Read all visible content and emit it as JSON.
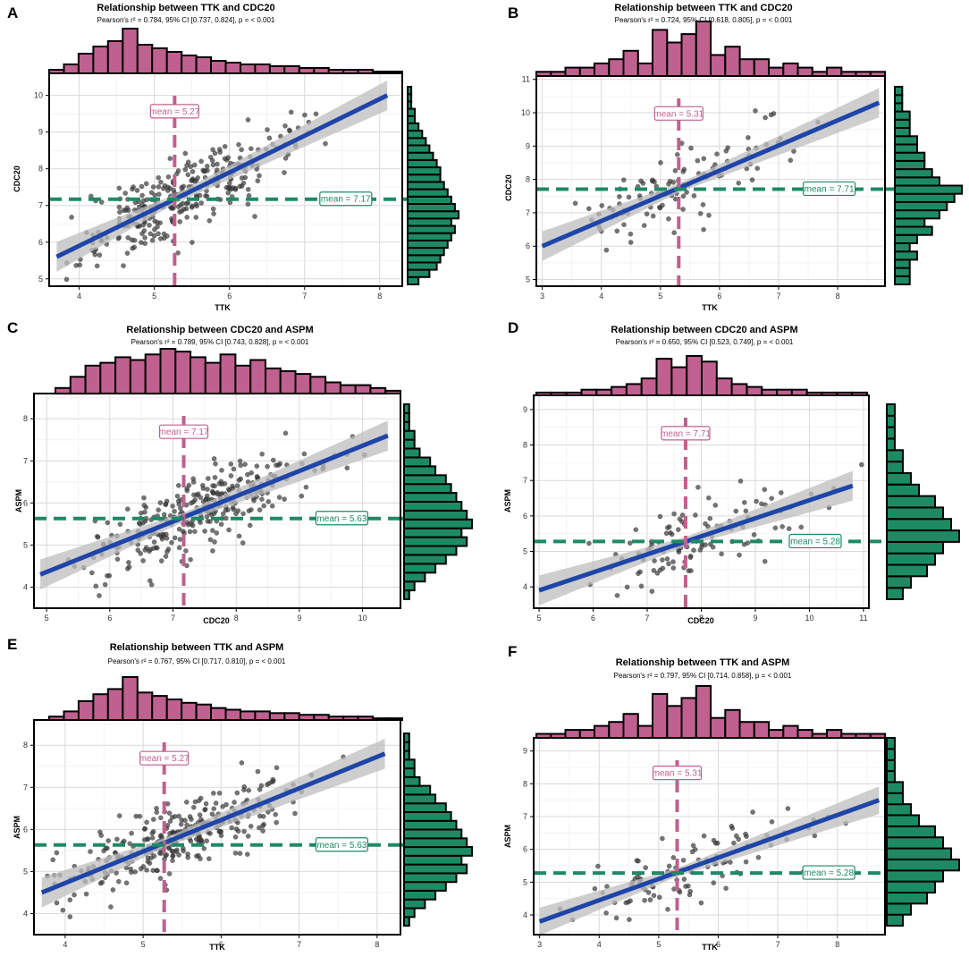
{
  "colors": {
    "hist_x": "#c0608f",
    "hist_y": "#1e8a64",
    "regression": "#1f45a8",
    "ci_band": "#bdbdbd",
    "points": "#3a3a3a",
    "mean_x": "#c0608f",
    "mean_y": "#1e8a64"
  },
  "chart_data": [
    {
      "panel": "A",
      "type": "scatter",
      "title": "Relationship between TTK and CDC20",
      "subtitle": "Pearson's r² = 0.784, 95% CI [0.737, 0.824], p = < 0.001",
      "xlabel": "TTK",
      "ylabel": "CDC20",
      "xlim": [
        3.6,
        8.3
      ],
      "ylim": [
        4.8,
        10.6
      ],
      "xticks": [
        "4",
        "5",
        "6",
        "7",
        "8"
      ],
      "yticks": [
        "5",
        "6",
        "7",
        "8",
        "9",
        "10"
      ],
      "mean_x": 5.27,
      "mean_y": 7.17,
      "mean_x_label": "mean = 5.27",
      "mean_y_label": "mean = 7.17",
      "fit": {
        "x0": 3.7,
        "y0": 5.6,
        "x1": 8.1,
        "y1": 10.0
      },
      "n_points": 300,
      "hist_x": [
        2,
        5,
        11,
        15,
        18,
        25,
        16,
        14,
        12,
        10,
        9,
        7,
        6,
        5,
        5,
        4,
        4,
        3,
        3,
        2,
        2,
        2,
        1,
        1
      ],
      "hist_y": [
        3,
        6,
        8,
        9,
        10,
        11,
        12,
        13,
        12,
        14,
        13,
        12,
        11,
        10,
        9,
        9,
        8,
        7,
        6,
        5,
        4,
        3,
        2,
        2,
        1,
        1,
        1
      ]
    },
    {
      "panel": "B",
      "type": "scatter",
      "title": "Relationship between TTK and CDC20",
      "subtitle": "Pearson's r² = 0.724, 95% CI [0.618, 0.805], p = < 0.001",
      "xlabel": "TTK",
      "ylabel": "CDC20",
      "xlim": [
        2.9,
        8.8
      ],
      "ylim": [
        4.8,
        11.1
      ],
      "xticks": [
        "3",
        "4",
        "5",
        "6",
        "7",
        "8"
      ],
      "yticks": [
        "5",
        "6",
        "7",
        "8",
        "9",
        "10",
        "11"
      ],
      "mean_x": 5.31,
      "mean_y": 7.71,
      "mean_x_label": "mean = 5.31",
      "mean_y_label": "mean = 7.71",
      "fit": {
        "x0": 3.0,
        "y0": 6.0,
        "x1": 8.7,
        "y1": 10.3
      },
      "n_points": 110,
      "hist_x": [
        1,
        1,
        2,
        2,
        3,
        4,
        6,
        3,
        11,
        8,
        10,
        13,
        5,
        7,
        4,
        4,
        2,
        3,
        2,
        1,
        2,
        1,
        1,
        1
      ],
      "hist_y": [
        2,
        2,
        2,
        3,
        2,
        3,
        5,
        4,
        6,
        7,
        8,
        9,
        6,
        5,
        4,
        4,
        3,
        3,
        2,
        2,
        2,
        1,
        1,
        1
      ]
    },
    {
      "panel": "C",
      "type": "scatter",
      "title": "Relationship between CDC20 and ASPM",
      "subtitle": "Pearson's r² = 0.789, 95% CI [0.743, 0.828], p = < 0.001",
      "xlabel": "CDC20",
      "ylabel": "ASPM",
      "xlim": [
        4.8,
        10.6
      ],
      "ylim": [
        3.5,
        8.6
      ],
      "xticks": [
        "5",
        "6",
        "7",
        "8",
        "9",
        "10"
      ],
      "yticks": [
        "4",
        "5",
        "6",
        "7",
        "8"
      ],
      "mean_x": 7.17,
      "mean_y": 5.63,
      "mean_x_label": "mean = 7.17",
      "mean_y_label": "mean = 5.63",
      "fit": {
        "x0": 4.9,
        "y0": 4.3,
        "x1": 10.4,
        "y1": 7.6
      },
      "n_points": 300,
      "hist_x": [
        2,
        6,
        10,
        11,
        13,
        12,
        14,
        16,
        15,
        13,
        11,
        14,
        10,
        12,
        9,
        8,
        7,
        6,
        4,
        3,
        3,
        2,
        1
      ],
      "hist_y": [
        1,
        2,
        4,
        6,
        8,
        10,
        12,
        11,
        13,
        12,
        11,
        10,
        9,
        8,
        6,
        5,
        3,
        2,
        2,
        1,
        1,
        1
      ]
    },
    {
      "panel": "D",
      "type": "scatter",
      "title": "Relationship between CDC20 and ASPM",
      "subtitle": "Pearson's r² = 0.650, 95% CI [0.523, 0.749], p = < 0.001",
      "xlabel": "CDC20",
      "ylabel": "ASPM",
      "xlim": [
        4.9,
        11.1
      ],
      "ylim": [
        3.4,
        9.4
      ],
      "xticks": [
        "5",
        "6",
        "7",
        "8",
        "9",
        "10",
        "11"
      ],
      "yticks": [
        "4",
        "5",
        "6",
        "7",
        "8",
        "9"
      ],
      "mean_x": 7.71,
      "mean_y": 5.28,
      "mean_x_label": "mean = 7.71",
      "mean_y_label": "mean = 5.28",
      "fit": {
        "x0": 5.0,
        "y0": 3.9,
        "x1": 10.8,
        "y1": 6.85
      },
      "n_points": 110,
      "hist_x": [
        1,
        1,
        1,
        2,
        2,
        3,
        4,
        6,
        13,
        10,
        14,
        12,
        6,
        4,
        3,
        2,
        2,
        2,
        1,
        1,
        1,
        1
      ],
      "hist_y": [
        2,
        3,
        5,
        6,
        7,
        9,
        8,
        7,
        6,
        4,
        3,
        2,
        2,
        1,
        1,
        1,
        1
      ]
    },
    {
      "panel": "E",
      "type": "scatter",
      "title": "Relationship between TTK and ASPM",
      "subtitle": "Pearson's r² = 0.767, 95% CI [0.717, 0.810], p = < 0.001",
      "xlabel": "TTK",
      "ylabel": "ASPM",
      "xlim": [
        3.6,
        8.3
      ],
      "ylim": [
        3.5,
        8.6
      ],
      "xticks": [
        "4",
        "5",
        "6",
        "7",
        "8"
      ],
      "yticks": [
        "4",
        "5",
        "6",
        "7",
        "8"
      ],
      "mean_x": 5.27,
      "mean_y": 5.63,
      "mean_x_label": "mean = 5.27",
      "mean_y_label": "mean = 5.63",
      "fit": {
        "x0": 3.7,
        "y0": 4.5,
        "x1": 8.1,
        "y1": 7.8
      },
      "n_points": 300,
      "hist_x": [
        2,
        5,
        11,
        15,
        18,
        25,
        16,
        14,
        12,
        10,
        9,
        7,
        6,
        5,
        5,
        4,
        4,
        3,
        3,
        2,
        2,
        2,
        1,
        1
      ],
      "hist_y": [
        1,
        2,
        4,
        6,
        8,
        10,
        12,
        11,
        13,
        12,
        11,
        10,
        9,
        8,
        6,
        5,
        3,
        2,
        2,
        1,
        1,
        1
      ]
    },
    {
      "panel": "F",
      "type": "scatter",
      "title": "Relationship between TTK and ASPM",
      "subtitle": "Pearson's r² = 0.797, 95% CI [0.714, 0.858], p = < 0.001",
      "xlabel": "TTK",
      "ylabel": "ASPM",
      "xlim": [
        2.9,
        8.8
      ],
      "ylim": [
        3.4,
        9.4
      ],
      "xticks": [
        "3",
        "4",
        "5",
        "6",
        "7",
        "8"
      ],
      "yticks": [
        "4",
        "5",
        "6",
        "7",
        "8",
        "9"
      ],
      "mean_x": 5.31,
      "mean_y": 5.28,
      "mean_x_label": "mean = 5.31",
      "mean_y_label": "mean = 5.28",
      "fit": {
        "x0": 3.0,
        "y0": 3.8,
        "x1": 8.7,
        "y1": 7.5
      },
      "n_points": 110,
      "hist_x": [
        1,
        1,
        2,
        2,
        3,
        4,
        6,
        3,
        11,
        8,
        10,
        13,
        5,
        7,
        4,
        4,
        2,
        3,
        2,
        1,
        2,
        1,
        1,
        1
      ],
      "hist_y": [
        2,
        3,
        5,
        6,
        7,
        9,
        8,
        7,
        6,
        4,
        3,
        2,
        2,
        1,
        1,
        1,
        1
      ]
    }
  ]
}
